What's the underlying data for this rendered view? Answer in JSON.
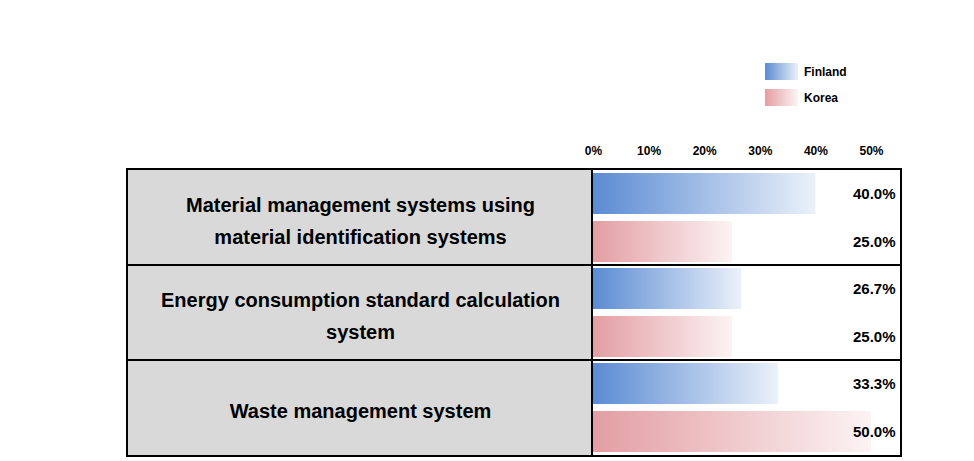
{
  "chart_data": {
    "type": "bar",
    "orientation": "horizontal",
    "categories": [
      "Material management systems using material identification systems",
      "Energy consumption standard calculation system",
      "Waste management system"
    ],
    "series": [
      {
        "name": "Finland",
        "color": "#5b8bd3",
        "values": [
          40,
          26.7,
          33.3
        ],
        "value_labels": [
          "40.0%",
          "26.7%",
          "33.3%"
        ]
      },
      {
        "name": "Korea",
        "color": "#e39ea2",
        "values": [
          25,
          25,
          50
        ],
        "value_labels": [
          "25.0%",
          "25.0%",
          "50.0%"
        ]
      }
    ],
    "xlim": [
      0,
      50
    ],
    "xticks": [
      {
        "value": 0,
        "label": "0%"
      },
      {
        "value": 10,
        "label": "10%"
      },
      {
        "value": 20,
        "label": "20%"
      },
      {
        "value": 30,
        "label": "30%"
      },
      {
        "value": 40,
        "label": "40%"
      },
      {
        "value": 50,
        "label": "50%"
      }
    ],
    "data_labels": true,
    "legend": "top-right",
    "grid": false
  }
}
